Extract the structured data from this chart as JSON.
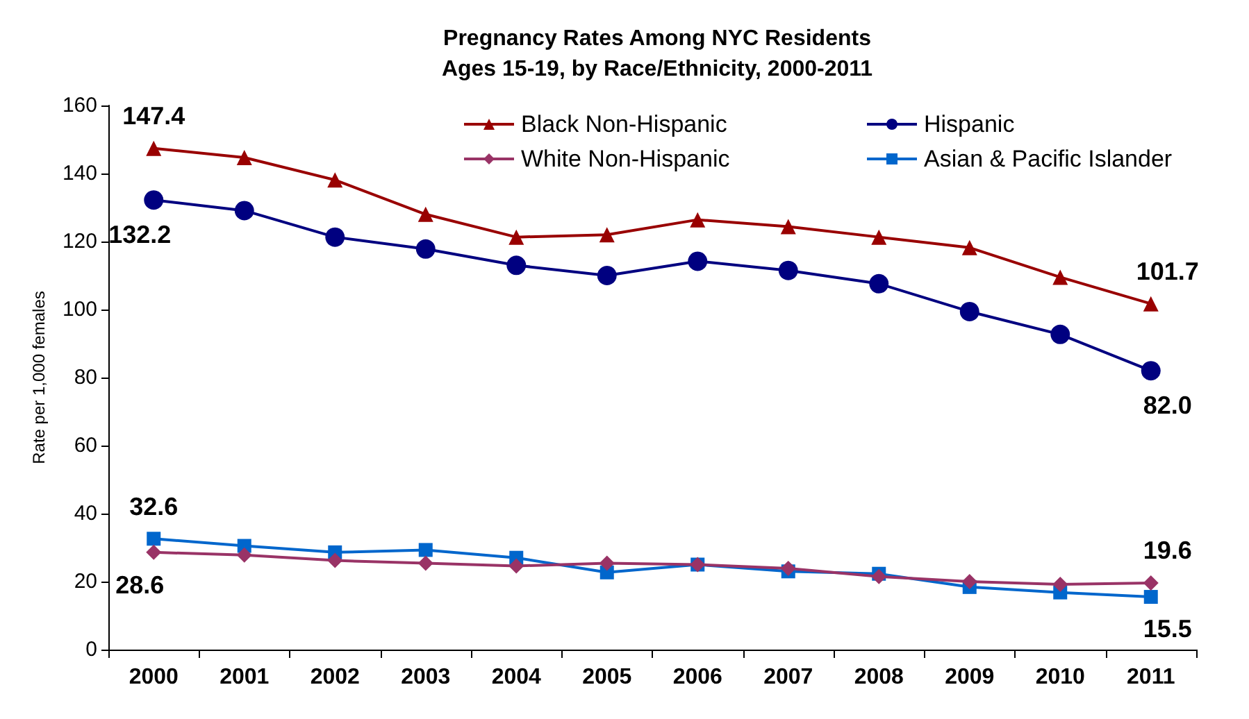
{
  "chart_data": {
    "type": "line",
    "title": "Pregnancy Rates Among NYC Residents\nAges 15-19, by Race/Ethnicity, 2000-2011",
    "ylabel": "Rate per 1,000 females",
    "categories": [
      "2000",
      "2001",
      "2002",
      "2003",
      "2004",
      "2005",
      "2006",
      "2007",
      "2008",
      "2009",
      "2010",
      "2011"
    ],
    "series": [
      {
        "name": "Black Non-Hispanic",
        "color": "#990000",
        "marker": "triangle",
        "values": [
          147.4,
          144.7,
          138.1,
          128,
          121.3,
          122,
          126.4,
          124.4,
          121.3,
          118.2,
          109.5,
          101.7
        ],
        "value_labels": [
          "147.4",
          null,
          null,
          null,
          null,
          null,
          null,
          null,
          null,
          null,
          null,
          "101.7"
        ]
      },
      {
        "name": "Hispanic",
        "color": "#000080",
        "marker": "circle",
        "values": [
          132.2,
          129.1,
          121.3,
          117.8,
          113,
          110,
          114.2,
          111.5,
          107.6,
          99.4,
          92.7,
          82.0
        ],
        "value_labels": [
          "132.2",
          null,
          null,
          null,
          null,
          null,
          null,
          null,
          null,
          null,
          null,
          "82.0"
        ]
      },
      {
        "name": "White Non-Hispanic",
        "color": "#993366",
        "marker": "diamond",
        "values": [
          28.6,
          27.8,
          26.2,
          25.4,
          24.6,
          25.4,
          25,
          23.9,
          21.5,
          20,
          19.2,
          19.6
        ],
        "value_labels": [
          "28.6",
          null,
          null,
          null,
          null,
          null,
          null,
          null,
          null,
          null,
          null,
          "19.6"
        ]
      },
      {
        "name": "Asian & Pacific Islander",
        "color": "#0066cc",
        "marker": "square",
        "values": [
          32.6,
          30.5,
          28.6,
          29.3,
          27,
          22.7,
          25,
          23,
          22.3,
          18.4,
          16.8,
          15.5
        ],
        "value_labels": [
          "32.6",
          null,
          null,
          null,
          null,
          null,
          null,
          null,
          null,
          null,
          null,
          "15.5"
        ]
      }
    ],
    "ylim": [
      0,
      160
    ],
    "yticks": [
      0,
      20,
      40,
      60,
      80,
      100,
      120,
      140,
      160
    ],
    "grid": false,
    "legend": "top right",
    "line_style": "solid"
  }
}
